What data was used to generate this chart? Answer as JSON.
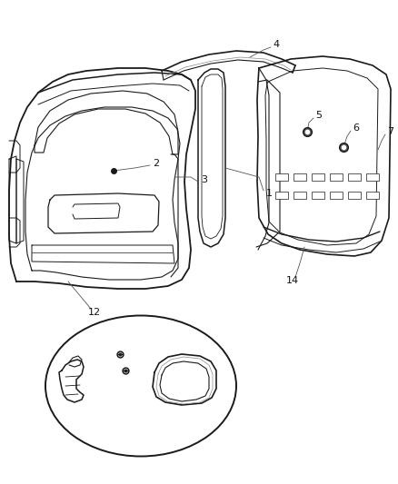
{
  "background_color": "#ffffff",
  "line_color": "#1a1a1a",
  "label_color": "#111111",
  "fig_width": 4.38,
  "fig_height": 5.33,
  "dpi": 100
}
